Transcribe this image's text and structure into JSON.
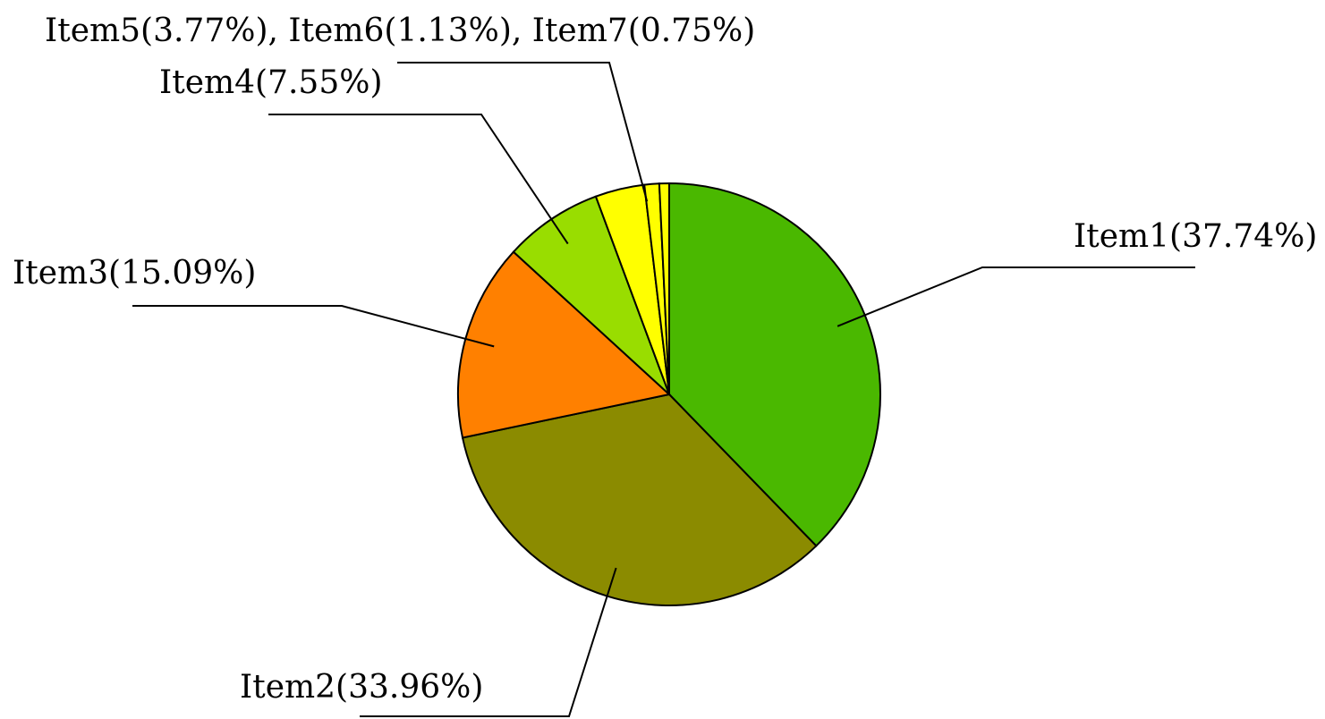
{
  "chart_data": {
    "type": "pie",
    "title": "",
    "start_angle_deg": 90,
    "direction": "clockwise",
    "slices": [
      {
        "label": "Item1",
        "value": 37.74,
        "display": "Item1(37.74%)",
        "color": "#4ab800"
      },
      {
        "label": "Item2",
        "value": 33.96,
        "display": "Item2(33.96%)",
        "color": "#8b8b00"
      },
      {
        "label": "Item3",
        "value": 15.09,
        "display": "Item3(15.09%)",
        "color": "#ff8000"
      },
      {
        "label": "Item4",
        "value": 7.55,
        "display": "Item4(7.55%)",
        "color": "#99dd00"
      },
      {
        "label": "Item5",
        "value": 3.77,
        "display": "Item5(3.77%)",
        "color": "#ffff00"
      },
      {
        "label": "Item6",
        "value": 1.13,
        "display": "Item6(1.13%)",
        "color": "#ffff00"
      },
      {
        "label": "Item7",
        "value": 0.75,
        "display": "Item7(0.75%)",
        "color": "#ffff00"
      }
    ],
    "grouped_label": "Item5(3.77%), Item6(1.13%), Item7(0.75%)",
    "grouped_color": "#ffff00"
  }
}
